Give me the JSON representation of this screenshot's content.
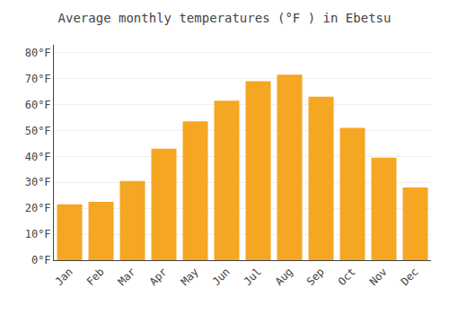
{
  "chart_data": {
    "type": "bar",
    "title": "Average monthly temperatures (°F ) in Ebetsu",
    "categories": [
      "Jan",
      "Feb",
      "Mar",
      "Apr",
      "May",
      "Jun",
      "Jul",
      "Aug",
      "Sep",
      "Oct",
      "Nov",
      "Dec"
    ],
    "values": [
      21.5,
      22.5,
      30.5,
      43.0,
      53.5,
      61.5,
      69.0,
      71.5,
      63.0,
      51.0,
      39.5,
      28.0
    ],
    "color": "#F5A623",
    "ylim": [
      0,
      83
    ],
    "yticks": [
      {
        "value": 0,
        "label": "0°F"
      },
      {
        "value": 10,
        "label": "10°F"
      },
      {
        "value": 20,
        "label": "20°F"
      },
      {
        "value": 30,
        "label": "30°F"
      },
      {
        "value": 40,
        "label": "40°F"
      },
      {
        "value": 50,
        "label": "50°F"
      },
      {
        "value": 60,
        "label": "60°F"
      },
      {
        "value": 70,
        "label": "70°F"
      },
      {
        "value": 80,
        "label": "80°F"
      }
    ],
    "grid": true
  }
}
